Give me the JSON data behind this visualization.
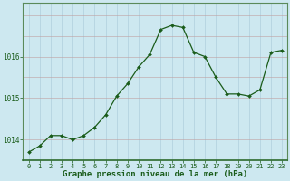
{
  "x": [
    0,
    1,
    2,
    3,
    4,
    5,
    6,
    7,
    8,
    9,
    10,
    11,
    12,
    13,
    14,
    15,
    16,
    17,
    18,
    19,
    20,
    21,
    22,
    23
  ],
  "y": [
    1013.7,
    1013.85,
    1014.1,
    1014.1,
    1014.0,
    1014.1,
    1014.3,
    1014.6,
    1015.05,
    1015.35,
    1015.75,
    1016.05,
    1016.65,
    1016.75,
    1016.7,
    1016.1,
    1016.0,
    1015.5,
    1015.1,
    1015.1,
    1015.05,
    1015.2,
    1016.1,
    1016.15
  ],
  "line_color": "#1a5c1a",
  "marker_color": "#1a5c1a",
  "bg_color": "#cde8f0",
  "grid_color_v": "#a8c8d8",
  "grid_color_h": "#c0a0a0",
  "axis_label_color": "#1a5c1a",
  "xlabel": "Graphe pression niveau de la mer (hPa)",
  "ylim": [
    1013.5,
    1017.3
  ],
  "yticks": [
    1014,
    1015,
    1016
  ],
  "xticks": [
    0,
    1,
    2,
    3,
    4,
    5,
    6,
    7,
    8,
    9,
    10,
    11,
    12,
    13,
    14,
    15,
    16,
    17,
    18,
    19,
    20,
    21,
    22,
    23
  ],
  "border_color": "#5a8a5a",
  "tick_label_fontsize": 5.0,
  "ylabel_fontsize": 5.5,
  "xlabel_fontsize": 6.5
}
